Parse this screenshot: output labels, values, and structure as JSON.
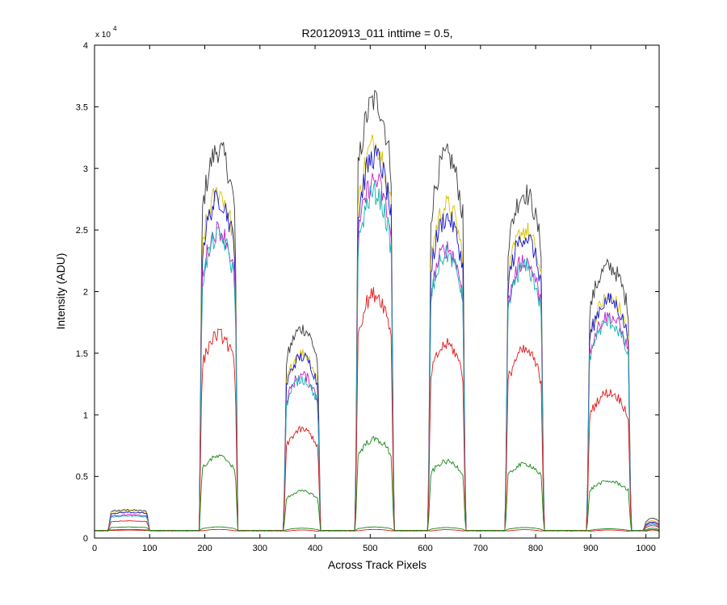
{
  "chart_data": {
    "type": "line",
    "title": "R20120913_011 inttime = 0.5,",
    "xlabel": "Across Track Pixels",
    "ylabel": "Intensity (ADU)",
    "y_scale_base": "x 10",
    "y_scale_exp": "4",
    "xlim": [
      0,
      1024
    ],
    "ylim": [
      0,
      40000
    ],
    "x_ticks": [
      0,
      100,
      200,
      300,
      400,
      500,
      600,
      700,
      800,
      900,
      1000
    ],
    "y_ticks": [
      0,
      5000,
      10000,
      15000,
      20000,
      25000,
      30000,
      35000,
      40000
    ],
    "y_tick_labels": [
      "0",
      "0.5",
      "1",
      "1.5",
      "2",
      "2.5",
      "3",
      "3.5",
      "4"
    ],
    "grid": false,
    "baseline": 600,
    "bands": [
      {
        "x_start": 30,
        "x_end": 95
      },
      {
        "x_start": 195,
        "x_end": 255
      },
      {
        "x_start": 348,
        "x_end": 405
      },
      {
        "x_start": 478,
        "x_end": 538
      },
      {
        "x_start": 610,
        "x_end": 668
      },
      {
        "x_start": 750,
        "x_end": 810
      },
      {
        "x_start": 898,
        "x_end": 968
      },
      {
        "x_start": 1000,
        "x_end": 1024
      }
    ],
    "series": [
      {
        "color": "#3a3a3a",
        "values": [
          2300,
          31500,
          17000,
          35500,
          31000,
          28000,
          22000,
          1600
        ]
      },
      {
        "color": "#d6c400",
        "values": [
          2200,
          28000,
          15000,
          32000,
          27000,
          25000,
          19500,
          1400
        ]
      },
      {
        "color": "#1414d2",
        "values": [
          2100,
          27500,
          14700,
          31000,
          26000,
          24500,
          19300,
          1300
        ]
      },
      {
        "color": "#c21fc2",
        "values": [
          1900,
          25000,
          13200,
          29000,
          23500,
          22500,
          18000,
          1200
        ]
      },
      {
        "color": "#13b2b2",
        "values": [
          1800,
          24500,
          12900,
          28000,
          23000,
          22000,
          17500,
          1100
        ]
      },
      {
        "color": "#e01818",
        "values": [
          1400,
          16500,
          8800,
          19800,
          15700,
          15200,
          11800,
          1000
        ]
      },
      {
        "color": "#138613",
        "values": [
          900,
          6600,
          3800,
          8000,
          6200,
          6000,
          4600,
          800
        ]
      },
      {
        "color": "#e01818",
        "values": [
          650,
          700,
          650,
          700,
          680,
          680,
          650,
          650
        ]
      },
      {
        "color": "#138613",
        "values": [
          700,
          900,
          800,
          900,
          850,
          850,
          750,
          700
        ]
      }
    ]
  }
}
